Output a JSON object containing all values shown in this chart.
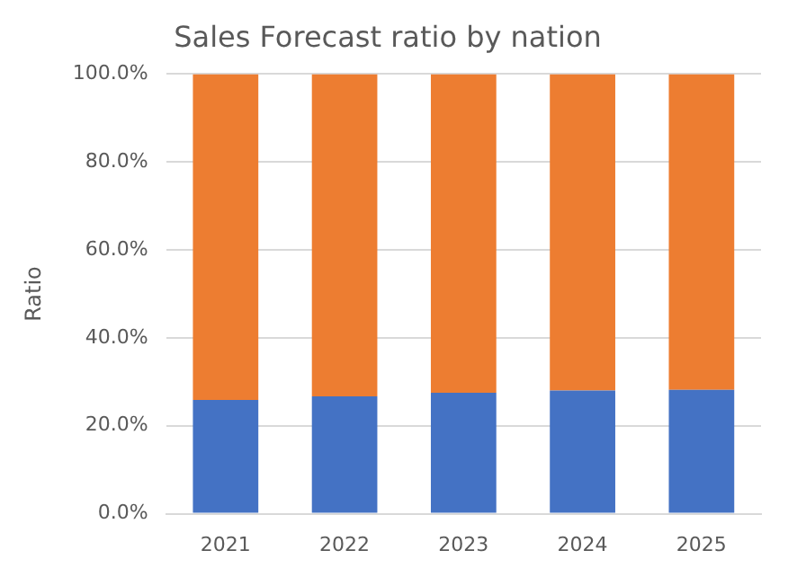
{
  "chart_data": {
    "type": "bar",
    "title": "Sales Forecast ratio by nation",
    "ylabel": "Ratio",
    "categories": [
      "2021",
      "2022",
      "2023",
      "2024",
      "2025"
    ],
    "stacked": true,
    "series": [
      {
        "color": "#4472c4",
        "values": [
          25.9,
          26.7,
          27.5,
          28,
          28.2
        ]
      },
      {
        "color": "#ed7d31",
        "values": [
          74.1,
          73.3,
          72.5,
          72,
          71.8
        ]
      }
    ],
    "ylim": [
      0,
      100
    ],
    "yticks": [
      {
        "value": 0,
        "label": "0.0%"
      },
      {
        "value": 20,
        "label": "20.0%"
      },
      {
        "value": 40,
        "label": "40.0%"
      },
      {
        "value": 60,
        "label": "60.0%"
      },
      {
        "value": 80,
        "label": "80.0%"
      },
      {
        "value": 100,
        "label": "100.0%"
      }
    ],
    "grid": "y",
    "legend": false
  }
}
